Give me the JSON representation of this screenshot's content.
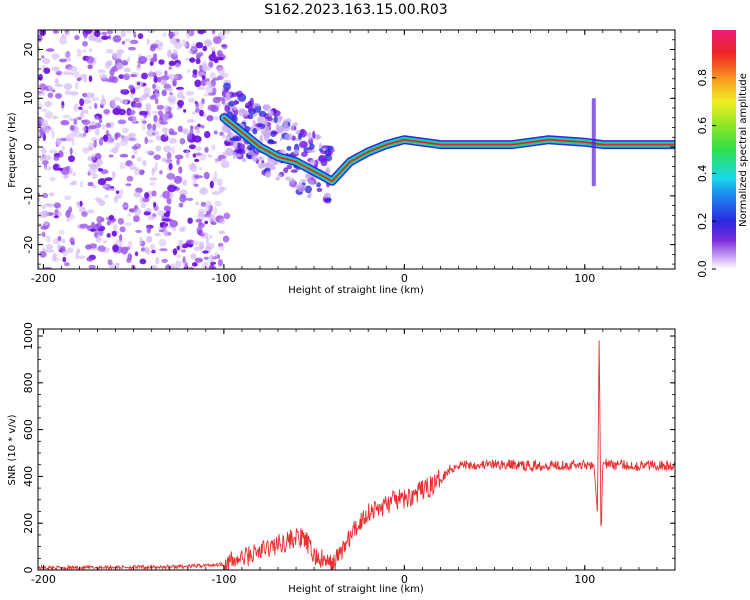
{
  "title": "S162.2023.163.15.00.R03",
  "colors": {
    "signal": "#e83030",
    "scatter": "#7a2bd9",
    "track_core": "#e81d3a",
    "track_glow": "#1fd06a",
    "track_edge": "#2b2bd0"
  },
  "chart_data": [
    {
      "type": "heatmap",
      "name": "spectrogram",
      "xlabel": "Height of straight line (km)",
      "ylabel": "Frequency (Hz)",
      "xlim": [
        -203,
        150
      ],
      "ylim": [
        -25,
        24
      ],
      "xticks": [
        -200,
        -100,
        0,
        100
      ],
      "yticks": [
        20,
        10,
        0,
        -10,
        -20
      ],
      "colorbar": {
        "label": "Normalized spectral amplitude",
        "range": [
          0.0,
          1.0
        ],
        "ticks": [
          0.0,
          0.2,
          0.4,
          0.6,
          0.8
        ]
      },
      "track": [
        {
          "x": -100,
          "y": 6
        },
        {
          "x": -90,
          "y": 3
        },
        {
          "x": -80,
          "y": 0
        },
        {
          "x": -70,
          "y": -2
        },
        {
          "x": -60,
          "y": -3
        },
        {
          "x": -50,
          "y": -5
        },
        {
          "x": -40,
          "y": -7
        },
        {
          "x": -30,
          "y": -3
        },
        {
          "x": -20,
          "y": -1
        },
        {
          "x": -10,
          "y": 0.5
        },
        {
          "x": 0,
          "y": 1.5
        },
        {
          "x": 20,
          "y": 0.5
        },
        {
          "x": 60,
          "y": 0.5
        },
        {
          "x": 80,
          "y": 1.5
        },
        {
          "x": 100,
          "y": 1
        },
        {
          "x": 110,
          "y": 0.5
        },
        {
          "x": 150,
          "y": 0.5
        }
      ]
    },
    {
      "type": "line",
      "name": "snr",
      "xlabel": "Height of straight line (km)",
      "ylabel": "SNR (10 * v/v)",
      "xlim": [
        -203,
        150
      ],
      "ylim": [
        0,
        1030
      ],
      "xticks": [
        -200,
        -100,
        0,
        100
      ],
      "yticks": [
        0,
        200,
        400,
        600,
        800,
        1000
      ],
      "series": [
        {
          "name": "SNR",
          "x": [
            -203,
            -180,
            -160,
            -140,
            -120,
            -100,
            -90,
            -80,
            -70,
            -60,
            -55,
            -50,
            -45,
            -40,
            -35,
            -30,
            -25,
            -20,
            -15,
            -10,
            -5,
            0,
            5,
            10,
            15,
            20,
            25,
            30,
            40,
            50,
            60,
            70,
            80,
            90,
            100,
            105,
            107,
            108,
            109,
            110,
            115,
            120,
            130,
            140,
            150
          ],
          "y": [
            10,
            10,
            12,
            12,
            15,
            25,
            50,
            80,
            110,
            140,
            130,
            60,
            40,
            20,
            80,
            140,
            200,
            250,
            260,
            280,
            300,
            300,
            320,
            340,
            360,
            390,
            430,
            450,
            450,
            450,
            450,
            445,
            450,
            450,
            450,
            455,
            250,
            1010,
            120,
            460,
            450,
            450,
            445,
            450,
            440
          ]
        }
      ]
    }
  ]
}
